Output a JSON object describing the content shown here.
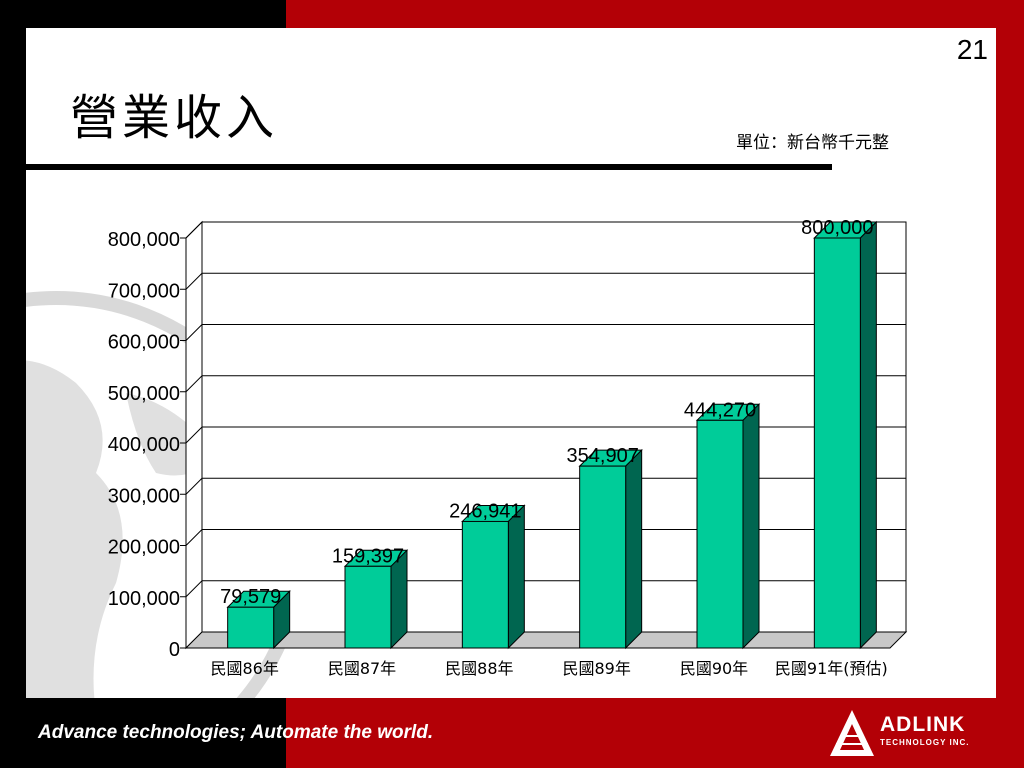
{
  "slide": {
    "page_number": "21",
    "title": "營業收入",
    "unit_label": "單位：新台幣千元整",
    "tagline": "Advance technologies; Automate the world.",
    "logo": {
      "name": "ADLINK",
      "subtitle": "TECHNOLOGY INC."
    },
    "colors": {
      "frame_red": "#b30006",
      "frame_black": "#000000",
      "bar_front": "#00cc99",
      "bar_side": "#006650"
    }
  },
  "chart_data": {
    "type": "bar",
    "categories": [
      "民國86年",
      "民國87年",
      "民國88年",
      "民國89年",
      "民國90年",
      "民國91年(預估)"
    ],
    "values": [
      79579,
      159397,
      246941,
      354907,
      444270,
      800000
    ],
    "data_labels": [
      "79,579",
      "159,397",
      "246,941",
      "354,907",
      "444,270",
      "800,000"
    ],
    "yticks": [
      "0",
      "100,000",
      "200,000",
      "300,000",
      "400,000",
      "500,000",
      "600,000",
      "700,000",
      "800,000"
    ],
    "ylim": [
      0,
      800000
    ],
    "title": "",
    "xlabel": "",
    "ylabel": "",
    "grid": true,
    "style": "3d"
  }
}
